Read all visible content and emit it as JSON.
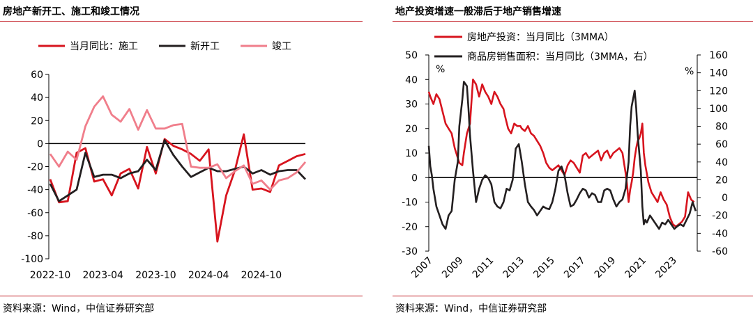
{
  "left_panel": {
    "title": "房地产新开工、施工和竣工情况",
    "source": "资料来源：Wind，中信证券研究部"
  },
  "right_panel": {
    "title": "地产投资增速一般滞后于地产销售增速",
    "source": "资料来源：Wind，中信证券研究部"
  },
  "chart_data": [
    {
      "type": "line",
      "title": "房地产新开工、施工和竣工情况",
      "xlabel": "",
      "ylabel": "",
      "ylim": [
        -100,
        60
      ],
      "yticks": [
        60,
        40,
        20,
        0,
        -20,
        -40,
        -60,
        -80,
        -100
      ],
      "x_count": 30,
      "xticks": [
        {
          "i": 0,
          "label": "2022-10"
        },
        {
          "i": 6,
          "label": "2023-04"
        },
        {
          "i": 12,
          "label": "2023-10"
        },
        {
          "i": 18,
          "label": "2024-04"
        },
        {
          "i": 24,
          "label": "2024-10"
        }
      ],
      "legend": "top",
      "series": [
        {
          "name": "当月同比：施工",
          "color": "#d7141e",
          "values": [
            -31,
            -51,
            -50,
            -8,
            -4,
            -33,
            -31,
            -45,
            -26,
            -22,
            -39,
            -3,
            -26,
            4,
            -2,
            -5,
            -9,
            -15,
            -5,
            -85,
            -45,
            -23,
            8,
            -40,
            -39,
            -42,
            -19,
            -15,
            -11,
            -9
          ]
        },
        {
          "name": "新开工",
          "color": "#231f20",
          "values": [
            -35,
            -50,
            -45,
            -40,
            -8,
            -29,
            -27,
            -27,
            -30,
            -26,
            -24,
            -14,
            -23,
            3,
            -10,
            -20,
            -29,
            -25,
            -21,
            -24,
            -24,
            -22,
            -20,
            -26,
            -23,
            -27,
            -24,
            -23,
            -23,
            -31
          ]
        },
        {
          "name": "竣工",
          "color": "#f07e8b",
          "values": [
            -9,
            -20,
            -7,
            -14,
            15,
            32,
            41,
            25,
            19,
            30,
            12,
            29,
            13,
            13,
            16,
            17,
            -20,
            -21,
            -21,
            -18,
            -30,
            -24,
            -19,
            -35,
            -32,
            -40,
            -32,
            -30,
            -25,
            -16
          ]
        }
      ]
    },
    {
      "type": "line",
      "title": "地产投资增速一般滞后于地产销售增速",
      "xlabel": "",
      "ylabel": "",
      "xlim": [
        2007,
        2024.6
      ],
      "xticks": [
        "2007",
        "2009",
        "2011",
        "2013",
        "2015",
        "2017",
        "2019",
        "2021",
        "2023"
      ],
      "y_left": {
        "unit": "%",
        "range": [
          -30,
          50
        ],
        "ticks": [
          50,
          40,
          30,
          20,
          10,
          0,
          -10,
          -20,
          -30
        ]
      },
      "y_right": {
        "unit": "%",
        "range": [
          -60,
          160
        ],
        "ticks": [
          160,
          140,
          120,
          100,
          80,
          60,
          40,
          20,
          0,
          -20,
          -40,
          -60
        ]
      },
      "legend": "top-left",
      "series": [
        {
          "name": "房地产投资：当月同比（3MMA）",
          "color": "#d7141e",
          "axis": "left",
          "x": [
            2007.0,
            2007.1,
            2007.3,
            2007.5,
            2007.7,
            2007.9,
            2008.1,
            2008.3,
            2008.5,
            2008.7,
            2008.9,
            2009.0,
            2009.2,
            2009.3,
            2009.5,
            2009.7,
            2009.9,
            2010.1,
            2010.3,
            2010.5,
            2010.7,
            2010.9,
            2011.1,
            2011.3,
            2011.5,
            2011.7,
            2011.9,
            2012.0,
            2012.2,
            2012.4,
            2012.6,
            2012.8,
            2013.0,
            2013.1,
            2013.3,
            2013.5,
            2013.7,
            2013.9,
            2014.1,
            2014.3,
            2014.5,
            2014.7,
            2014.9,
            2015.1,
            2015.3,
            2015.5,
            2015.7,
            2015.9,
            2016.1,
            2016.3,
            2016.5,
            2016.7,
            2016.9,
            2017.1,
            2017.3,
            2017.5,
            2017.7,
            2017.9,
            2018.1,
            2018.3,
            2018.5,
            2018.7,
            2018.9,
            2019.1,
            2019.3,
            2019.5,
            2019.7,
            2019.9,
            2020.0,
            2020.1,
            2020.2,
            2020.3,
            2020.4,
            2020.5,
            2020.6,
            2020.7,
            2020.8,
            2020.9,
            2021.0,
            2021.1,
            2021.2,
            2021.4,
            2021.6,
            2021.8,
            2022.0,
            2022.2,
            2022.4,
            2022.6,
            2022.8,
            2023.0,
            2023.2,
            2023.4,
            2023.6,
            2023.8,
            2024.0,
            2024.2,
            2024.4
          ],
          "values": [
            35,
            33,
            30,
            34,
            32,
            27,
            22,
            20,
            18,
            12,
            8,
            6,
            5,
            10,
            18,
            22,
            40,
            38,
            33,
            38,
            35,
            33,
            30,
            35,
            33,
            30,
            28,
            25,
            20,
            18,
            22,
            21,
            21,
            20,
            19,
            21,
            18,
            17,
            15,
            13,
            10,
            6,
            4,
            3,
            4,
            5,
            3,
            1,
            5,
            7,
            6,
            4,
            2,
            9,
            10,
            8,
            9,
            10,
            11,
            7,
            10,
            11,
            8,
            10,
            11,
            12,
            10,
            2,
            -3,
            -10,
            -5,
            -2,
            2,
            8,
            12,
            15,
            16,
            18,
            22,
            10,
            5,
            -2,
            -6,
            -8,
            -10,
            -6,
            -9,
            -11,
            -16,
            -19,
            -20,
            -19,
            -18,
            -16,
            -6,
            -9,
            -10
          ]
        },
        {
          "name": "商品房销售面积：当月同比（3MMA，右）",
          "color": "#231f20",
          "axis": "right",
          "x": [
            2007.0,
            2007.1,
            2007.2,
            2007.3,
            2007.5,
            2007.7,
            2007.9,
            2008.1,
            2008.3,
            2008.5,
            2008.7,
            2008.9,
            2009.0,
            2009.2,
            2009.3,
            2009.5,
            2009.6,
            2009.7,
            2009.9,
            2010.1,
            2010.3,
            2010.5,
            2010.7,
            2010.9,
            2011.1,
            2011.3,
            2011.5,
            2011.7,
            2011.9,
            2012.1,
            2012.3,
            2012.5,
            2012.7,
            2012.9,
            2013.0,
            2013.1,
            2013.3,
            2013.5,
            2013.7,
            2013.9,
            2014.1,
            2014.3,
            2014.5,
            2014.7,
            2014.9,
            2015.1,
            2015.3,
            2015.5,
            2015.7,
            2015.9,
            2016.1,
            2016.3,
            2016.5,
            2016.7,
            2016.9,
            2017.1,
            2017.3,
            2017.5,
            2017.7,
            2017.9,
            2018.1,
            2018.3,
            2018.5,
            2018.7,
            2018.9,
            2019.1,
            2019.3,
            2019.5,
            2019.7,
            2019.9,
            2020.1,
            2020.2,
            2020.3,
            2020.5,
            2020.6,
            2020.7,
            2020.9,
            2021.0,
            2021.1,
            2021.2,
            2021.3,
            2021.5,
            2021.7,
            2021.9,
            2022.1,
            2022.3,
            2022.5,
            2022.7,
            2022.9,
            2023.1,
            2023.3,
            2023.5,
            2023.7,
            2023.9,
            2024.1,
            2024.3,
            2024.5
          ],
          "values": [
            58,
            35,
            25,
            10,
            -10,
            -20,
            -30,
            -35,
            -20,
            -15,
            20,
            40,
            80,
            110,
            130,
            125,
            100,
            70,
            30,
            -5,
            10,
            20,
            25,
            22,
            15,
            -5,
            -10,
            -12,
            -5,
            10,
            8,
            20,
            55,
            60,
            50,
            40,
            15,
            -5,
            -10,
            -14,
            -20,
            -15,
            -10,
            -12,
            -13,
            -5,
            10,
            30,
            35,
            25,
            5,
            -10,
            -8,
            -2,
            5,
            10,
            8,
            0,
            5,
            3,
            -5,
            -5,
            8,
            10,
            8,
            -2,
            -10,
            -5,
            -2,
            10,
            40,
            80,
            102,
            120,
            100,
            70,
            30,
            -10,
            -30,
            -25,
            -28,
            -20,
            -25,
            -30,
            -35,
            -28,
            -30,
            -25,
            -30,
            -35,
            -32,
            -30,
            -32,
            -25,
            -18,
            -5,
            -15
          ]
        }
      ]
    }
  ]
}
